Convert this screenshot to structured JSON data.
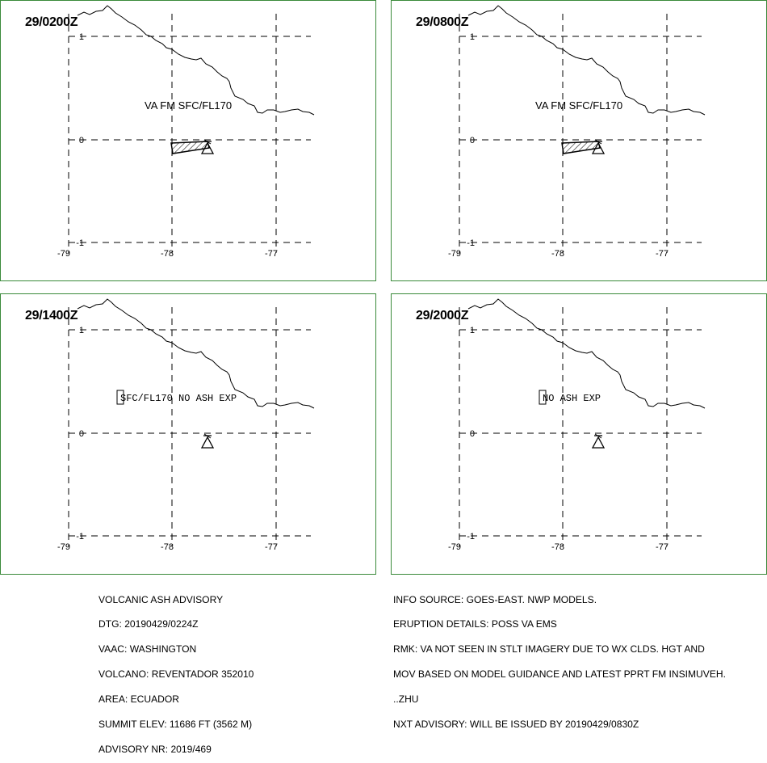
{
  "panels": [
    {
      "time": "29/0200Z",
      "annotation": "VA FM SFC/FL170",
      "annotation_boxed": false,
      "has_ash": true
    },
    {
      "time": "29/0800Z",
      "annotation": "VA FM SFC/FL170",
      "annotation_boxed": false,
      "has_ash": true
    },
    {
      "time": "29/1400Z",
      "annotation": "SFC/FL170 NO ASH EXP",
      "annotation_boxed": true,
      "has_ash": false
    },
    {
      "time": "29/2000Z",
      "annotation": "NO ASH EXP",
      "annotation_boxed": true,
      "has_ash": false
    }
  ],
  "axes": {
    "lon_ticks": [
      "-79",
      "-78",
      "-77"
    ],
    "lat_ticks": [
      "1",
      "0",
      "-1"
    ]
  },
  "advisory_left": [
    "VOLCANIC ASH ADVISORY",
    "DTG: 20190429/0224Z",
    "VAAC: WASHINGTON",
    "VOLCANO: REVENTADOR 352010",
    "AREA: ECUADOR",
    "SUMMIT ELEV: 11686 FT (3562 M)",
    "ADVISORY NR: 2019/469"
  ],
  "advisory_right": [
    "INFO SOURCE: GOES-EAST. NWP MODELS.",
    "ERUPTION DETAILS: POSS VA EMS",
    "RMK: VA NOT SEEN IN STLT IMAGERY DUE TO WX CLDS. HGT AND",
    "MOV BASED ON MODEL GUIDANCE AND LATEST PPRT FM INSIMUVEH.",
    "..ZHU",
    "NXT ADVISORY: WILL BE ISSUED BY 20190429/0830Z"
  ],
  "colors": {
    "panel_border": "#3a8a3a",
    "lines": "#000000",
    "background": "#ffffff"
  },
  "icons": {
    "volcano": "volcano-triangle-icon",
    "ash_area": "hatched-polygon"
  }
}
